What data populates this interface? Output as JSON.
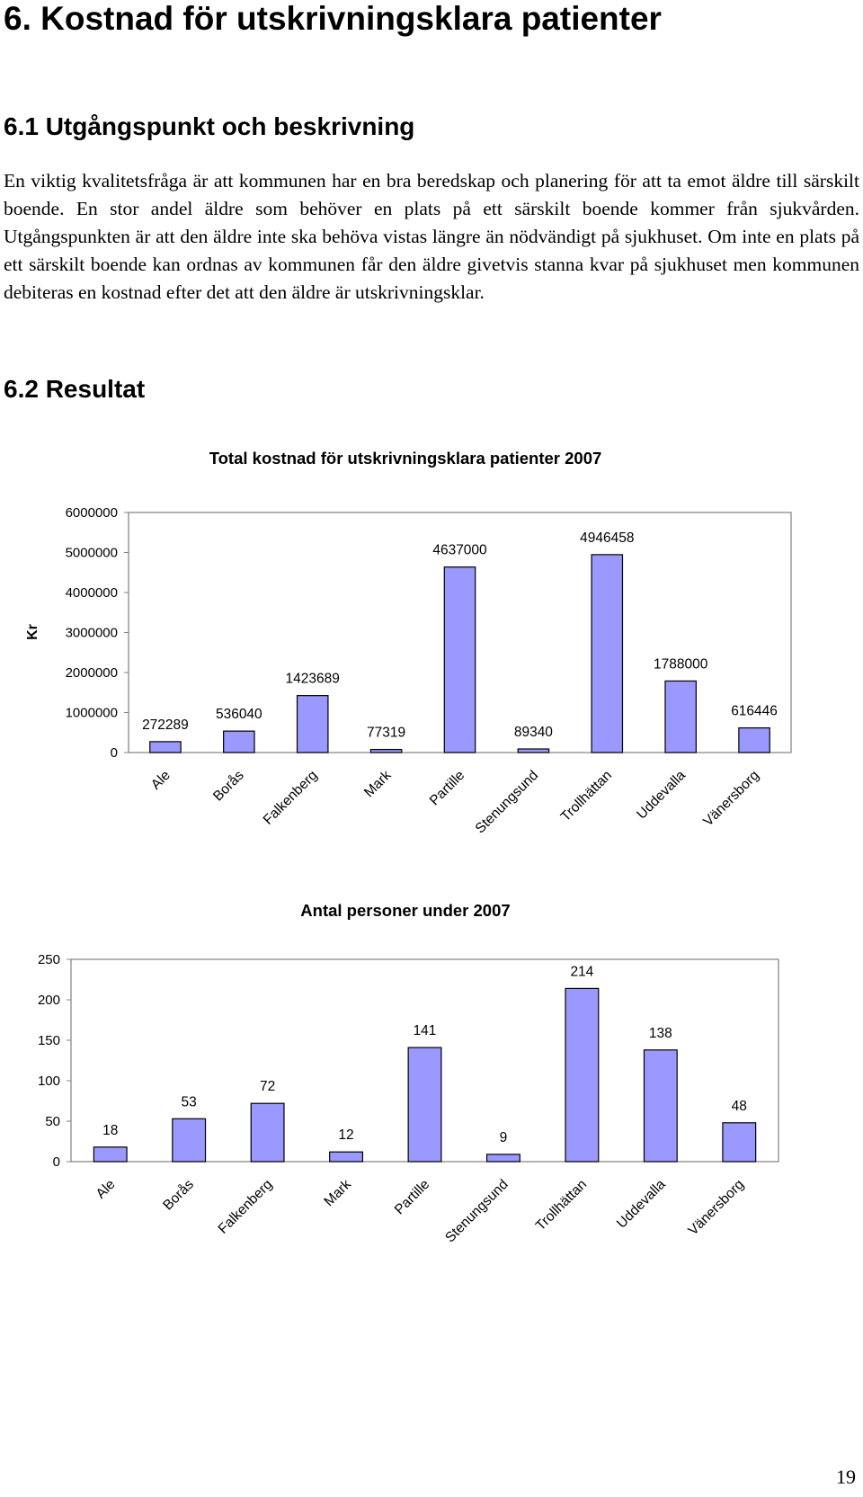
{
  "heading": "6.  Kostnad för utskrivningsklara patienter",
  "section1": {
    "title": "6.1  Utgångspunkt och beskrivning",
    "text": "En viktig kvalitetsfråga är att kommunen har en bra beredskap och planering för att ta emot äldre till särskilt boende. En stor andel äldre som behöver en plats på ett särskilt boende kommer från sjukvården. Utgångspunkten är att den äldre inte ska behöva vistas längre än nödvändigt på sjukhuset. Om inte en plats på ett särskilt boende kan ordnas av kommunen får den äldre givetvis stanna kvar på sjukhuset men kommunen debiteras en kostnad efter det att den äldre är utskrivningsklar."
  },
  "section2": {
    "title": "6.2 Resultat"
  },
  "page_number": "19",
  "colors": {
    "bar_fill": "#9999ff",
    "bar_stroke": "#000000",
    "axis": "#808080"
  },
  "chart_data": [
    {
      "type": "bar",
      "title": "Total kostnad för utskrivningsklara patienter 2007",
      "ylabel": "Kr",
      "xlabel": "",
      "ylim": [
        0,
        6000000
      ],
      "yticks": [
        "0",
        "1000000",
        "2000000",
        "3000000",
        "4000000",
        "5000000",
        "6000000"
      ],
      "grid": false,
      "categories": [
        "Ale",
        "Borås",
        "Falkenberg",
        "Mark",
        "Partille",
        "Stenungsund",
        "Trollhättan",
        "Uddevalla",
        "Vänersborg"
      ],
      "values": [
        272289,
        536040,
        1423689,
        77319,
        4637000,
        89340,
        4946458,
        1788000,
        616446
      ],
      "labels": [
        "272289",
        "536040",
        "1423689",
        "77319",
        "4637000",
        "89340",
        "4946458",
        "1788000",
        "616446"
      ]
    },
    {
      "type": "bar",
      "title": "Antal personer under 2007",
      "ylabel": "",
      "xlabel": "",
      "ylim": [
        0,
        250
      ],
      "yticks": [
        "0",
        "50",
        "100",
        "150",
        "200",
        "250"
      ],
      "grid": false,
      "categories": [
        "Ale",
        "Borås",
        "Falkenberg",
        "Mark",
        "Partille",
        "Stenungsund",
        "Trollhättan",
        "Uddevalla",
        "Vänersborg"
      ],
      "values": [
        18,
        53,
        72,
        12,
        141,
        9,
        214,
        138,
        48
      ],
      "labels": [
        "18",
        "53",
        "72",
        "12",
        "141",
        "9",
        "214",
        "138",
        "48"
      ]
    }
  ]
}
